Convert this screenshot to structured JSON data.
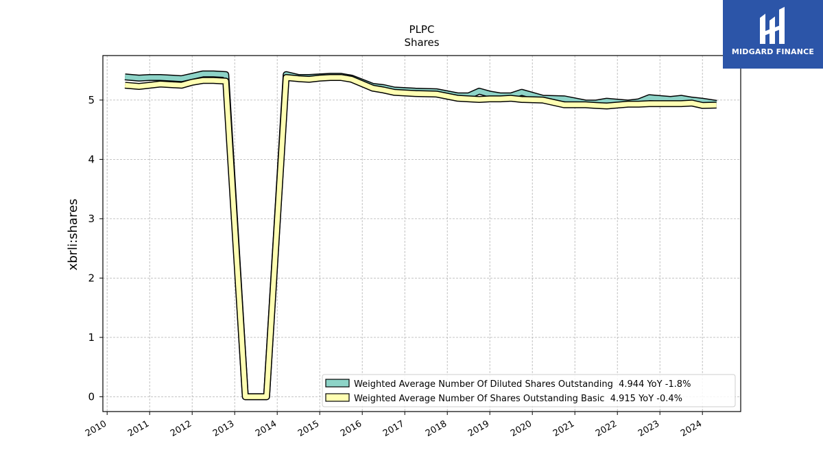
{
  "logo": {
    "text": "MIDGARD FINANCE"
  },
  "chart_data": {
    "type": "line",
    "title": "PLPC",
    "subtitle": "Shares",
    "ylabel": "xbrli:shares",
    "xlim": [
      2009.9,
      2024.9
    ],
    "ylim": [
      -0.25,
      5.75
    ],
    "yticks": [
      0,
      1,
      2,
      3,
      4,
      5
    ],
    "xticks": [
      "2010",
      "2011",
      "2012",
      "2013",
      "2014",
      "2015",
      "2016",
      "2017",
      "2018",
      "2019",
      "2020",
      "2021",
      "2022",
      "2023",
      "2024"
    ],
    "grid": true,
    "legend_position": "lower-right",
    "series": [
      {
        "name": "Weighted Average Number Of Diluted Shares Outstanding",
        "legend": "Weighted Average Number Of Diluted Shares Outstanding  4.944 YoY -1.8%",
        "color": "#8dd3c7",
        "x": [
          2010.42,
          2010.75,
          2011.0,
          2011.25,
          2011.75,
          2012.0,
          2012.25,
          2012.5,
          2012.79,
          2013.25,
          2013.5,
          2013.75,
          2014.21,
          2014.5,
          2014.75,
          2015.0,
          2015.25,
          2015.5,
          2015.75,
          2016.25,
          2016.5,
          2016.75,
          2017.25,
          2017.75,
          2018.25,
          2018.5,
          2018.75,
          2019.0,
          2019.25,
          2019.5,
          2019.75,
          2020.25,
          2020.75,
          2021.25,
          2021.5,
          2021.75,
          2022.25,
          2022.5,
          2022.75,
          2023.25,
          2023.5,
          2023.75,
          2024.0,
          2024.33
        ],
        "values": [
          5.39,
          5.37,
          5.38,
          5.38,
          5.36,
          5.4,
          5.44,
          5.44,
          5.43,
          0.0,
          0.0,
          0.0,
          5.43,
          5.38,
          5.38,
          5.39,
          5.4,
          5.4,
          5.37,
          5.23,
          5.21,
          5.17,
          5.15,
          5.14,
          5.07,
          5.07,
          5.15,
          5.1,
          5.07,
          5.07,
          5.13,
          5.03,
          5.02,
          4.95,
          4.95,
          4.98,
          4.95,
          4.97,
          5.04,
          5.01,
          5.03,
          5.0,
          4.98,
          4.944
        ]
      },
      {
        "name": "Weighted Average Number Of Shares Outstanding Basic",
        "legend": "Weighted Average Number Of Shares Outstanding Basic  4.915 YoY -0.4%",
        "color": "#ffffb3",
        "x": [
          2010.42,
          2010.75,
          2011.0,
          2011.25,
          2011.75,
          2012.0,
          2012.25,
          2012.5,
          2012.79,
          2013.25,
          2013.5,
          2013.75,
          2014.21,
          2014.5,
          2014.75,
          2015.0,
          2015.25,
          2015.5,
          2015.75,
          2016.25,
          2016.5,
          2016.75,
          2017.25,
          2017.75,
          2018.25,
          2018.5,
          2018.75,
          2019.0,
          2019.25,
          2019.5,
          2019.75,
          2020.25,
          2020.75,
          2021.25,
          2021.5,
          2021.75,
          2022.25,
          2022.5,
          2022.75,
          2023.25,
          2023.5,
          2023.75,
          2024.0,
          2024.33
        ],
        "values": [
          5.25,
          5.23,
          5.25,
          5.27,
          5.25,
          5.3,
          5.33,
          5.33,
          5.32,
          0.0,
          0.0,
          0.0,
          5.38,
          5.36,
          5.35,
          5.37,
          5.38,
          5.38,
          5.35,
          5.2,
          5.17,
          5.13,
          5.11,
          5.1,
          5.03,
          5.02,
          5.01,
          5.02,
          5.02,
          5.03,
          5.01,
          5.0,
          4.92,
          4.92,
          4.91,
          4.9,
          4.93,
          4.93,
          4.94,
          4.94,
          4.94,
          4.95,
          4.91,
          4.915
        ]
      }
    ]
  }
}
